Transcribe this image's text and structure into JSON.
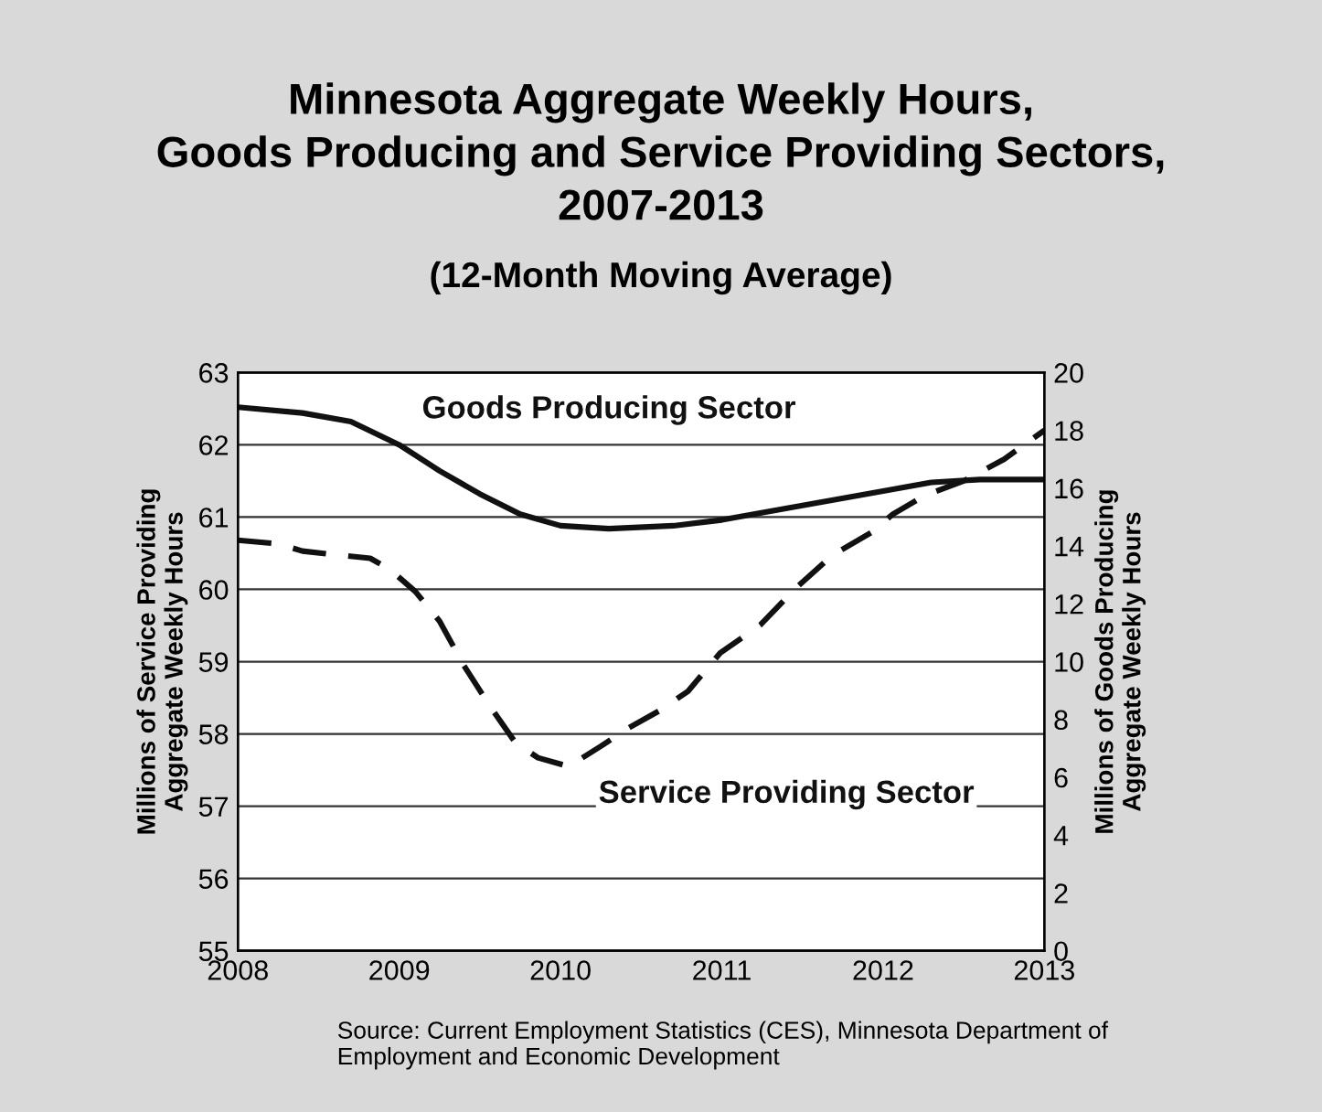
{
  "chart_data": {
    "type": "line",
    "title": "Minnesota Aggregate Weekly Hours,\nGoods Producing and Service Providing Sectors,\n2007-2013",
    "subtitle": "(12-Month Moving Average)",
    "ylabel": "Millions of Service Providing\nAggregate Weekly Hours",
    "y2label": "Millions of Goods Producing\nAggregate Weekly Hours",
    "series": [
      {
        "name": "Goods Producing Sector",
        "color": "#111111",
        "line_style": "solid",
        "axis": "y2",
        "x": [
          2008,
          2008.4,
          2008.7,
          2009,
          2009.25,
          2009.5,
          2009.75,
          2010,
          2010.3,
          2010.7,
          2011,
          2011.5,
          2012,
          2012.3,
          2012.6,
          2013
        ],
        "values": [
          18.8,
          18.6,
          18.3,
          17.5,
          16.6,
          15.8,
          15.1,
          14.7,
          14.6,
          14.7,
          14.9,
          15.4,
          15.9,
          16.2,
          16.3,
          16.3
        ]
      },
      {
        "name": "Service Providing Sector",
        "color": "#111111",
        "line_style": "dashed",
        "axis": "y",
        "x": [
          2008,
          2008.25,
          2008.4,
          2008.6,
          2008.82,
          2008.94,
          2009.1,
          2009.25,
          2009.4,
          2009.56,
          2009.72,
          2009.86,
          2010.05,
          2010.25,
          2010.42,
          2010.62,
          2010.79,
          2010.99,
          2011.24,
          2011.46,
          2011.69,
          2011.93,
          2012.06,
          2012.26,
          2012.5,
          2012.75,
          2013
        ],
        "values": [
          60.68,
          60.63,
          60.53,
          60.48,
          60.43,
          60.28,
          59.97,
          59.56,
          58.95,
          58.39,
          57.88,
          57.67,
          57.55,
          57.83,
          58.08,
          58.33,
          58.59,
          59.12,
          59.51,
          60.02,
          60.48,
          60.79,
          61.04,
          61.3,
          61.5,
          61.8,
          62.2
        ]
      }
    ],
    "xlim": [
      2008,
      2013
    ],
    "xticks": [
      2008,
      2009,
      2010,
      2011,
      2012,
      2013
    ],
    "ylim": [
      55,
      63
    ],
    "yticks": [
      55,
      56,
      57,
      58,
      59,
      60,
      61,
      62,
      63
    ],
    "y2lim": [
      0,
      20
    ],
    "y2ticks": [
      0,
      2,
      4,
      6,
      8,
      10,
      12,
      14,
      16,
      18,
      20
    ],
    "grid": "y",
    "legend": false,
    "annotations": [
      "Source: Current Employment Statistics (CES), Minnesota Department of\nEmployment and Economic Development"
    ]
  }
}
